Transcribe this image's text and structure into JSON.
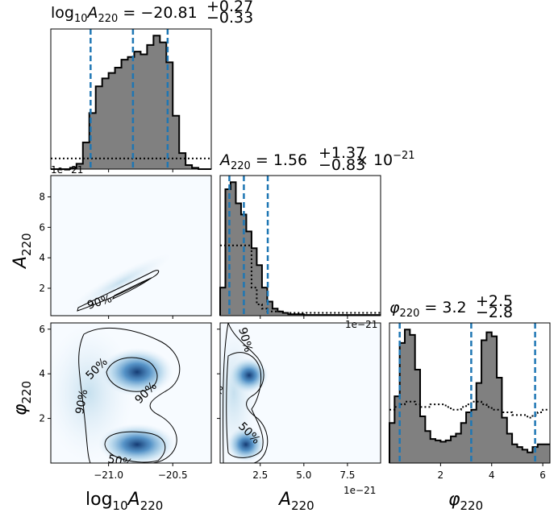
{
  "chart_data": {
    "type": "corner",
    "parameters": [
      "log10A220",
      "A220",
      "phi220"
    ],
    "axis_labels": {
      "log10A220": {
        "base": "log",
        "sub1": "10",
        "var": "A",
        "sub2": "220"
      },
      "A220": {
        "var": "A",
        "sub": "220"
      },
      "phi220": {
        "var": "φ",
        "sub": "220"
      }
    },
    "offset_texts": {
      "A220_x": "1e−21",
      "A220_y": "1e−21",
      "A220_hist": "1e−21"
    },
    "titles": {
      "log10A220": {
        "pre": "log",
        "sub1": "10",
        "var": "A",
        "sub2": "220",
        "eq": " = −20.81",
        "plus": "+0.27",
        "minus": "−0.33"
      },
      "A220": {
        "var": "A",
        "sub": "220",
        "eq": " = 1.56",
        "plus": "+1.37",
        "minus": "−0.83",
        "mult": "× 10",
        "exp": "−21"
      },
      "phi220": {
        "var": "φ",
        "sub": "220",
        "eq": " = 3.2",
        "plus": "+2.5",
        "minus": "−2.8"
      }
    },
    "ticks": {
      "log10A220_x": [
        -21.0,
        -20.5
      ],
      "log10A220_x_labels": [
        "−21.0",
        "−20.5"
      ],
      "A220_x": [
        2.5,
        5.0,
        7.5
      ],
      "A220_x_labels": [
        "2.5",
        "5.0",
        "7.5"
      ],
      "A220_y": [
        2,
        4,
        6,
        8
      ],
      "A220_y_labels": [
        "2",
        "4",
        "6",
        "8"
      ],
      "phi220_x": [
        2,
        4,
        6
      ],
      "phi220_x_labels": [
        "2",
        "4",
        "6"
      ],
      "phi220_y": [
        2,
        4,
        6
      ],
      "phi220_y_labels": [
        "2",
        "4",
        "6"
      ]
    },
    "ranges": {
      "log10A220": [
        -21.45,
        -20.2
      ],
      "A220": [
        0.2,
        9.4
      ],
      "phi220": [
        0.0,
        6.28
      ]
    },
    "hist_log10A220": {
      "bins": [
        -21.45,
        -21.4,
        -21.35,
        -21.3,
        -21.25,
        -21.2,
        -21.15,
        -21.1,
        -21.05,
        -21.0,
        -20.95,
        -20.9,
        -20.85,
        -20.8,
        -20.75,
        -20.7,
        -20.65,
        -20.6,
        -20.55,
        -20.5,
        -20.45,
        -20.4,
        -20.35,
        -20.3,
        -20.25,
        -20.2
      ],
      "counts": [
        0,
        0,
        0,
        1,
        4,
        20,
        42,
        62,
        68,
        72,
        76,
        82,
        84,
        88,
        86,
        93,
        100,
        95,
        80,
        40,
        12,
        3,
        1,
        0,
        0
      ],
      "prior": [
        8,
        8,
        8,
        8,
        8,
        8,
        8,
        8,
        8,
        8,
        8,
        8,
        8,
        8,
        8,
        8,
        8,
        8,
        8,
        8,
        8,
        8,
        8,
        8,
        8
      ],
      "quantiles": [
        -21.14,
        -20.81,
        -20.54
      ]
    },
    "hist_A220": {
      "bins": [
        0.2,
        0.5,
        0.8,
        1.1,
        1.4,
        1.7,
        2.0,
        2.3,
        2.6,
        2.9,
        3.2,
        3.5,
        3.8,
        4.1,
        4.4,
        5.0,
        9.4
      ],
      "counts": [
        20,
        90,
        95,
        80,
        72,
        60,
        48,
        36,
        20,
        10,
        5,
        3,
        2,
        1,
        1,
        0.5
      ],
      "prior": [
        50,
        50,
        50,
        50,
        50,
        50,
        20,
        8,
        5,
        3,
        3,
        3,
        2,
        2,
        2,
        2
      ],
      "quantiles": [
        0.73,
        1.56,
        2.93
      ]
    },
    "hist_phi220": {
      "bins": [
        0.0,
        0.2,
        0.4,
        0.6,
        0.8,
        1.0,
        1.2,
        1.4,
        1.6,
        1.8,
        2.0,
        2.2,
        2.4,
        2.6,
        2.8,
        3.0,
        3.2,
        3.4,
        3.6,
        3.8,
        4.0,
        4.2,
        4.4,
        4.6,
        4.8,
        5.0,
        5.2,
        5.4,
        5.6,
        5.8,
        6.0,
        6.28
      ],
      "counts": [
        30,
        50,
        90,
        100,
        96,
        70,
        35,
        24,
        18,
        17,
        16,
        17,
        20,
        22,
        30,
        38,
        40,
        60,
        92,
        98,
        95,
        64,
        34,
        22,
        14,
        12,
        10,
        8,
        12,
        14,
        14
      ],
      "prior": [
        40,
        42,
        44,
        46,
        46,
        44,
        42,
        42,
        44,
        44,
        44,
        42,
        40,
        40,
        42,
        44,
        46,
        46,
        44,
        42,
        40,
        40,
        38,
        38,
        36,
        36,
        36,
        34,
        36,
        38,
        40
      ],
      "quantiles": [
        0.4,
        3.2,
        5.7
      ]
    },
    "contour_levels": [
      "50%",
      "90%"
    ],
    "colors": {
      "hist_fill": "#808080",
      "quantile": "#1f77b4",
      "density": "#08519c"
    }
  }
}
